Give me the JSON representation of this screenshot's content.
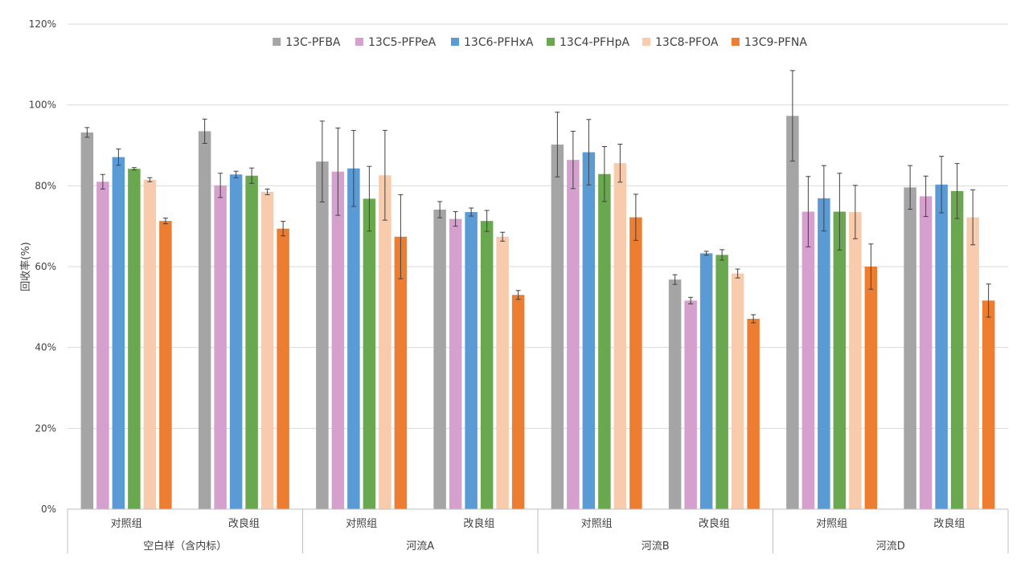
{
  "chart_data": {
    "type": "bar",
    "title": "",
    "xlabel": "",
    "ylabel": "回收率(%)",
    "ylim": [
      0,
      120
    ],
    "yticks": [
      0,
      20,
      40,
      60,
      80,
      100,
      120
    ],
    "ytick_labels": [
      "0%",
      "20%",
      "40%",
      "60%",
      "80%",
      "100%",
      "120%"
    ],
    "grid": true,
    "legend_position": "top",
    "groups": [
      {
        "label": "空白样（含内标）",
        "subcategories": [
          "对照组",
          "改良组"
        ]
      },
      {
        "label": "河流A",
        "subcategories": [
          "对照组",
          "改良组"
        ]
      },
      {
        "label": "河流B",
        "subcategories": [
          "对照组",
          "改良组"
        ]
      },
      {
        "label": "河流D",
        "subcategories": [
          "对照组",
          "改良组"
        ]
      }
    ],
    "series": [
      {
        "name": "13C-PFBA",
        "color": "#a5a5a5",
        "values": [
          93.2,
          93.5,
          86.0,
          74.1,
          90.2,
          56.8,
          97.3,
          79.6
        ],
        "errors": [
          1.2,
          3.0,
          10.0,
          2.0,
          8.0,
          1.2,
          11.2,
          5.4
        ]
      },
      {
        "name": "13C5-PFPeA",
        "color": "#d5a0cd",
        "values": [
          81.0,
          80.1,
          83.5,
          71.8,
          86.4,
          51.6,
          73.6,
          77.4
        ],
        "errors": [
          1.8,
          3.0,
          10.8,
          1.8,
          7.1,
          0.8,
          8.7,
          5.0
        ]
      },
      {
        "name": "13C6-PFHxA",
        "color": "#5b9bd5",
        "values": [
          87.1,
          82.8,
          84.3,
          73.5,
          88.3,
          63.3,
          76.9,
          80.3
        ],
        "errors": [
          2.0,
          0.8,
          9.4,
          1.0,
          8.1,
          0.5,
          8.1,
          7.0
        ]
      },
      {
        "name": "13C4-PFHpA",
        "color": "#6aa84f",
        "values": [
          84.2,
          82.5,
          76.8,
          71.3,
          82.9,
          62.9,
          73.6,
          78.7
        ],
        "errors": [
          0.3,
          1.9,
          8.0,
          2.6,
          6.8,
          1.3,
          9.5,
          6.8
        ]
      },
      {
        "name": "13C8-PFOA",
        "color": "#f8cbad",
        "values": [
          81.5,
          78.5,
          82.6,
          67.4,
          85.6,
          58.3,
          73.5,
          72.2
        ],
        "errors": [
          0.5,
          0.7,
          11.1,
          1.1,
          4.7,
          1.1,
          6.6,
          6.8
        ]
      },
      {
        "name": "13C9-PFNA",
        "color": "#ed7d31",
        "values": [
          71.3,
          69.4,
          67.4,
          53.0,
          72.2,
          47.1,
          60.0,
          51.6
        ],
        "errors": [
          0.7,
          1.8,
          10.4,
          1.1,
          5.7,
          1.0,
          5.6,
          4.1
        ]
      }
    ]
  }
}
